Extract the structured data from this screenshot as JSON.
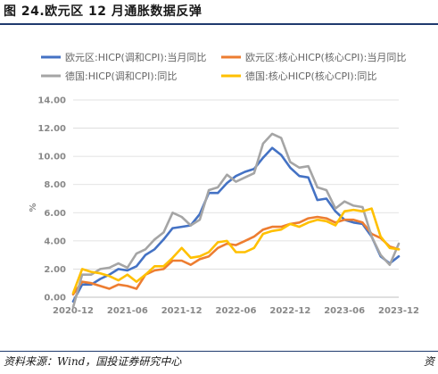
{
  "header": {
    "title": "图 24.欧元区 12 月通胀数据反弹"
  },
  "footer": {
    "source": "资料来源：Wind，国投证券研究中心",
    "corner": "资"
  },
  "chart_data": {
    "type": "line",
    "title": "",
    "xlabel": "",
    "ylabel": "%",
    "ylim": [
      0,
      14
    ],
    "yticks": [
      "0.00",
      "2.00",
      "4.00",
      "6.00",
      "8.00",
      "10.00",
      "12.00",
      "14.00"
    ],
    "xticks": [
      "2020-12",
      "2021-06",
      "2021-12",
      "2022-06",
      "2022-12",
      "2023-06",
      "2023-12"
    ],
    "grid": true,
    "legend_position": "top",
    "x": [
      "2020-12",
      "2021-01",
      "2021-02",
      "2021-03",
      "2021-04",
      "2021-05",
      "2021-06",
      "2021-07",
      "2021-08",
      "2021-09",
      "2021-10",
      "2021-11",
      "2021-12",
      "2022-01",
      "2022-02",
      "2022-03",
      "2022-04",
      "2022-05",
      "2022-06",
      "2022-07",
      "2022-08",
      "2022-09",
      "2022-10",
      "2022-11",
      "2022-12",
      "2023-01",
      "2023-02",
      "2023-03",
      "2023-04",
      "2023-05",
      "2023-06",
      "2023-07",
      "2023-08",
      "2023-09",
      "2023-10",
      "2023-11",
      "2023-12"
    ],
    "series": [
      {
        "name": "欧元区:HICP(调和CPI):当月同比",
        "color": "#4472c4",
        "values": [
          -0.3,
          0.9,
          0.9,
          1.3,
          1.6,
          2.0,
          1.9,
          2.2,
          3.0,
          3.4,
          4.1,
          4.9,
          5.0,
          5.1,
          5.9,
          7.4,
          7.4,
          8.1,
          8.6,
          8.9,
          9.1,
          9.9,
          10.6,
          10.1,
          9.2,
          8.6,
          8.5,
          6.9,
          7.0,
          6.1,
          5.5,
          5.3,
          5.2,
          4.3,
          2.9,
          2.4,
          2.9
        ]
      },
      {
        "name": "欧元区:核心HICP(核心CPI):当月同比",
        "color": "#ed7d31",
        "values": [
          0.2,
          1.1,
          1.0,
          0.8,
          0.6,
          0.9,
          0.8,
          0.6,
          1.6,
          1.9,
          2.0,
          2.6,
          2.6,
          2.3,
          2.7,
          2.9,
          3.5,
          3.8,
          3.7,
          4.0,
          4.3,
          4.8,
          5.0,
          5.0,
          5.2,
          5.3,
          5.6,
          5.7,
          5.6,
          5.3,
          5.5,
          5.5,
          5.3,
          4.5,
          4.2,
          3.6,
          3.4
        ]
      },
      {
        "name": "德国:HICP(调和CPI):同比",
        "color": "#a5a5a5",
        "values": [
          -0.7,
          1.6,
          1.6,
          2.0,
          2.1,
          2.4,
          2.1,
          3.1,
          3.4,
          4.1,
          4.6,
          6.0,
          5.7,
          5.1,
          5.5,
          7.6,
          7.8,
          8.7,
          8.2,
          8.5,
          8.8,
          10.9,
          11.6,
          11.3,
          9.6,
          9.2,
          9.3,
          7.8,
          7.6,
          6.3,
          6.8,
          6.5,
          6.4,
          4.3,
          3.0,
          2.3,
          3.8
        ]
      },
      {
        "name": "德国:核心HICP(核心CPI):同比",
        "color": "#ffc000",
        "values": [
          0.3,
          2.0,
          1.8,
          1.7,
          1.5,
          1.2,
          1.6,
          1.1,
          1.6,
          2.2,
          2.2,
          2.8,
          3.5,
          2.8,
          2.9,
          3.2,
          3.9,
          4.0,
          3.2,
          3.2,
          3.5,
          4.5,
          4.7,
          4.8,
          5.2,
          5.0,
          5.3,
          5.5,
          5.4,
          5.1,
          6.1,
          6.2,
          6.1,
          6.3,
          4.3,
          3.5,
          3.4
        ]
      }
    ]
  }
}
